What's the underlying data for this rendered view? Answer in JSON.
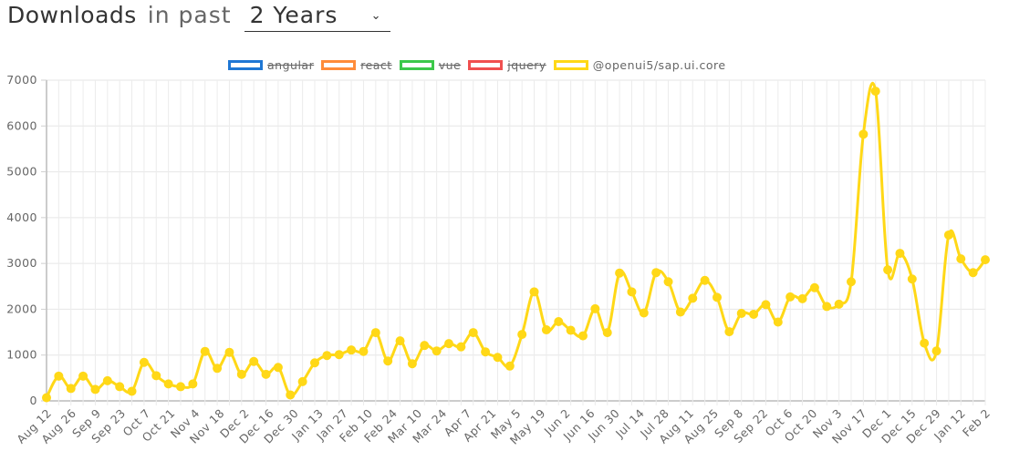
{
  "header": {
    "title": "Downloads",
    "mid": "in past",
    "period": "2 Years",
    "chevron": "⌄"
  },
  "legend": [
    {
      "label": "angular",
      "color": "#1f77d4",
      "hidden": true
    },
    {
      "label": "react",
      "color": "#ff8c3a",
      "hidden": true
    },
    {
      "label": "vue",
      "color": "#3cc84a",
      "hidden": true
    },
    {
      "label": "jquery",
      "color": "#f05050",
      "hidden": true
    },
    {
      "label": "@openui5/sap.ui.core",
      "color": "#ffd817",
      "hidden": false
    }
  ],
  "chart_data": {
    "type": "line",
    "ylim": [
      0,
      7000
    ],
    "yticks": [
      0,
      1000,
      2000,
      3000,
      4000,
      5000,
      6000,
      7000
    ],
    "grid": true,
    "legend_position": "top",
    "xticklabels": [
      "Aug 12",
      "Aug 26",
      "Sep 9",
      "Sep 23",
      "Oct 7",
      "Oct 21",
      "Nov 4",
      "Nov 18",
      "Dec 2",
      "Dec 16",
      "Dec 30",
      "Jan 13",
      "Jan 27",
      "Feb 10",
      "Feb 24",
      "Mar 10",
      "Mar 24",
      "Apr 7",
      "Apr 21",
      "May 5",
      "May 19",
      "Jun 2",
      "Jun 16",
      "Jun 30",
      "Jul 14",
      "Jul 28",
      "Aug 11",
      "Aug 25",
      "Sep 8",
      "Sep 22",
      "Oct 6",
      "Oct 20",
      "Nov 3",
      "Nov 17",
      "Dec 1",
      "Dec 15",
      "Dec 29",
      "Jan 12",
      "Feb 2"
    ],
    "series": [
      {
        "name": "@openui5/sap.ui.core",
        "color": "#ffd817",
        "values": [
          70,
          540,
          270,
          540,
          250,
          440,
          310,
          210,
          840,
          550,
          370,
          310,
          370,
          1080,
          710,
          1060,
          580,
          860,
          580,
          730,
          130,
          420,
          830,
          990,
          1010,
          1110,
          1080,
          1490,
          870,
          1310,
          810,
          1210,
          1090,
          1250,
          1180,
          1490,
          1070,
          950,
          760,
          1450,
          2380,
          1550,
          1730,
          1540,
          1420,
          2010,
          1490,
          2790,
          2380,
          1920,
          2800,
          2600,
          1940,
          2240,
          2630,
          2260,
          1510,
          1910,
          1890,
          2100,
          1720,
          2270,
          2230,
          2470,
          2060,
          2110,
          2600,
          5820,
          6760,
          2860,
          3220,
          2660,
          1260,
          1090,
          3620,
          3100,
          2800,
          3080
        ]
      }
    ]
  }
}
